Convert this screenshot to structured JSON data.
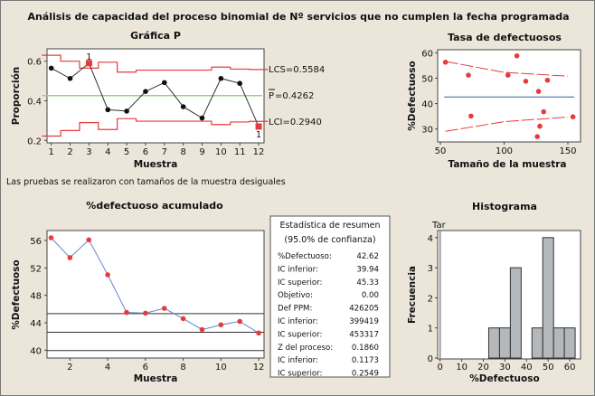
{
  "title": "Análisis de capacidad del proceso binomial de Nº servicios que no cumplen la fecha programada",
  "note": "Las pruebas se realizaron con tamaños de la muestra desiguales",
  "colors": {
    "background": "#ece6da",
    "limit": "#e83a3a",
    "center_p": "#9ccf7f",
    "center_rate": "#3a5fa0",
    "point": "#111111",
    "flag": "#e83a3a",
    "cum_line": "#5b86c9",
    "cum_point": "#e83a3a",
    "bar": "#b5b8bb"
  },
  "chart_data": [
    {
      "type": "line",
      "title": "Gráfica P",
      "xlabel": "Muestra",
      "ylabel": "Proporción",
      "ylim": [
        0.2,
        0.65
      ],
      "yticks": [
        "0.2",
        "0.4",
        "0.6"
      ],
      "x": [
        1,
        2,
        3,
        4,
        5,
        6,
        7,
        8,
        9,
        10,
        11,
        12
      ],
      "values": [
        0.565,
        0.513,
        0.59,
        0.355,
        0.348,
        0.447,
        0.492,
        0.37,
        0.313,
        0.513,
        0.488,
        0.27
      ],
      "flagged": [
        3,
        12
      ],
      "flag_label": "1",
      "ucl": [
        0.63,
        0.6,
        0.565,
        0.595,
        0.545,
        0.555,
        0.555,
        0.555,
        0.555,
        0.57,
        0.56,
        0.558
      ],
      "lcl": [
        0.222,
        0.25,
        0.29,
        0.255,
        0.31,
        0.297,
        0.297,
        0.297,
        0.297,
        0.28,
        0.293,
        0.296
      ],
      "center": 0.4262,
      "labels": {
        "ucl": "LCS=0.5584",
        "center_sym": "P",
        "center_val": "=0.4262",
        "lcl": "LCI=0.2940"
      }
    },
    {
      "type": "scatter",
      "title": "Tasa de defectuosos",
      "xlabel": "Tamaño de la muestra",
      "ylabel": "%Defectuoso",
      "xlim": [
        50,
        155
      ],
      "ylim": [
        25,
        61
      ],
      "xticks": [
        "50",
        "100",
        "150"
      ],
      "yticks": [
        "30",
        "40",
        "50",
        "60"
      ],
      "points": [
        [
          54,
          56.3
        ],
        [
          72,
          51.2
        ],
        [
          74,
          35.1
        ],
        [
          103,
          51.2
        ],
        [
          110,
          58.8
        ],
        [
          117,
          48.8
        ],
        [
          126,
          27
        ],
        [
          127,
          44.8
        ],
        [
          128,
          31.1
        ],
        [
          131,
          36.8
        ],
        [
          134,
          49.2
        ],
        [
          154,
          34.8
        ]
      ],
      "center": 42.62,
      "upper_limit": [
        [
          54,
          56.6
        ],
        [
          100,
          52.3
        ],
        [
          150,
          50.8
        ]
      ],
      "lower_limit": [
        [
          54,
          29.1
        ],
        [
          100,
          32.9
        ],
        [
          150,
          34.7
        ]
      ]
    },
    {
      "type": "line",
      "title": "%defectuoso acumulado",
      "xlabel": "Muestra",
      "ylabel": "%Defectuoso",
      "ylim": [
        39,
        57.5
      ],
      "xticks": [
        "2",
        "4",
        "6",
        "8",
        "10",
        "12"
      ],
      "yticks": [
        "40",
        "44",
        "48",
        "52",
        "56"
      ],
      "x": [
        1,
        2,
        3,
        4,
        5,
        6,
        7,
        8,
        9,
        10,
        11,
        12
      ],
      "values": [
        56.4,
        53.5,
        56.1,
        51.0,
        45.5,
        45.4,
        46.1,
        44.6,
        43.0,
        43.7,
        44.2,
        42.5
      ],
      "reference_lines": [
        45.33,
        42.62,
        39.94
      ]
    },
    {
      "type": "bar",
      "title": "Histograma",
      "xlabel": "%Defectuoso",
      "ylabel": "Frecuencia",
      "target_label": "Tar",
      "xticks": [
        "0",
        "10",
        "20",
        "30",
        "40",
        "50",
        "60"
      ],
      "yticks": [
        "0",
        "1",
        "2",
        "3",
        "4"
      ],
      "bins": [
        [
          22.5,
          27.5
        ],
        [
          27.5,
          32.5
        ],
        [
          32.5,
          37.5
        ],
        [
          37.5,
          42.5
        ],
        [
          42.5,
          47.5
        ],
        [
          47.5,
          52.5
        ],
        [
          52.5,
          57.5
        ],
        [
          57.5,
          62.5
        ]
      ],
      "values": [
        1,
        1,
        3,
        0,
        1,
        4,
        1,
        1
      ],
      "target": 0
    }
  ],
  "summary": {
    "title1": "Estadística de resumen",
    "title2": "(95.0% de confianza)",
    "rows": [
      [
        "%Defectuoso:",
        "42.62"
      ],
      [
        "IC inferior:",
        "39.94"
      ],
      [
        "IC superior:",
        "45.33"
      ],
      [
        "Objetivo:",
        "0.00"
      ],
      [
        "Def PPM:",
        "426205"
      ],
      [
        "IC inferior:",
        "399419"
      ],
      [
        "IC superior:",
        "453317"
      ],
      [
        "Z del proceso:",
        "0.1860"
      ],
      [
        "IC inferior:",
        "0.1173"
      ],
      [
        "IC superior:",
        "0.2549"
      ]
    ]
  }
}
